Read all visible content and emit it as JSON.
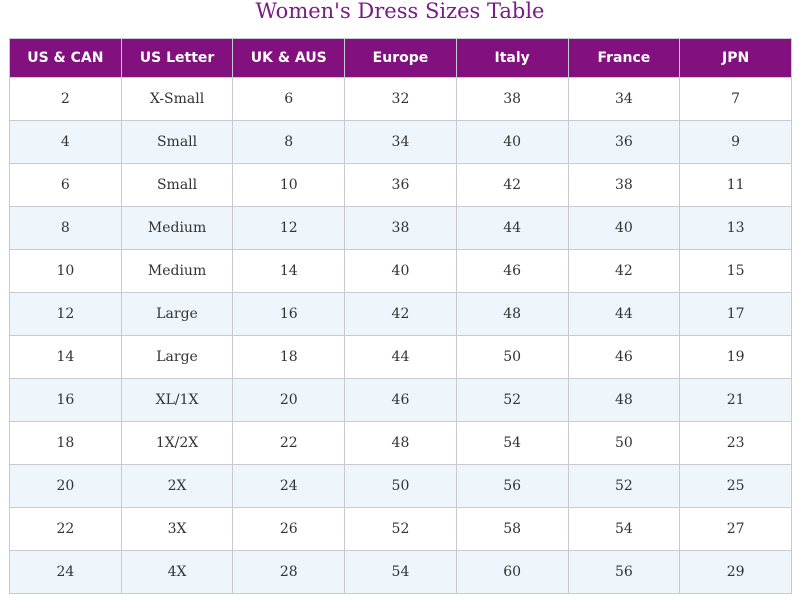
{
  "title": "Women's Dress Sizes Table",
  "colors": {
    "title": "#7a1a86",
    "header_bg": "#82117f",
    "header_text": "#ffffff",
    "row_alt_bg": "#eef6fc",
    "border": "#c9c9d2"
  },
  "table": {
    "headers": [
      "US & CAN",
      "US Letter",
      "UK & AUS",
      "Europe",
      "Italy",
      "France",
      "JPN"
    ],
    "rows": [
      [
        "2",
        "X-Small",
        "6",
        "32",
        "38",
        "34",
        "7"
      ],
      [
        "4",
        "Small",
        "8",
        "34",
        "40",
        "36",
        "9"
      ],
      [
        "6",
        "Small",
        "10",
        "36",
        "42",
        "38",
        "11"
      ],
      [
        "8",
        "Medium",
        "12",
        "38",
        "44",
        "40",
        "13"
      ],
      [
        "10",
        "Medium",
        "14",
        "40",
        "46",
        "42",
        "15"
      ],
      [
        "12",
        "Large",
        "16",
        "42",
        "48",
        "44",
        "17"
      ],
      [
        "14",
        "Large",
        "18",
        "44",
        "50",
        "46",
        "19"
      ],
      [
        "16",
        "XL/1X",
        "20",
        "46",
        "52",
        "48",
        "21"
      ],
      [
        "18",
        "1X/2X",
        "22",
        "48",
        "54",
        "50",
        "23"
      ],
      [
        "20",
        "2X",
        "24",
        "50",
        "56",
        "52",
        "25"
      ],
      [
        "22",
        "3X",
        "26",
        "52",
        "58",
        "54",
        "27"
      ],
      [
        "24",
        "4X",
        "28",
        "54",
        "60",
        "56",
        "29"
      ]
    ]
  }
}
